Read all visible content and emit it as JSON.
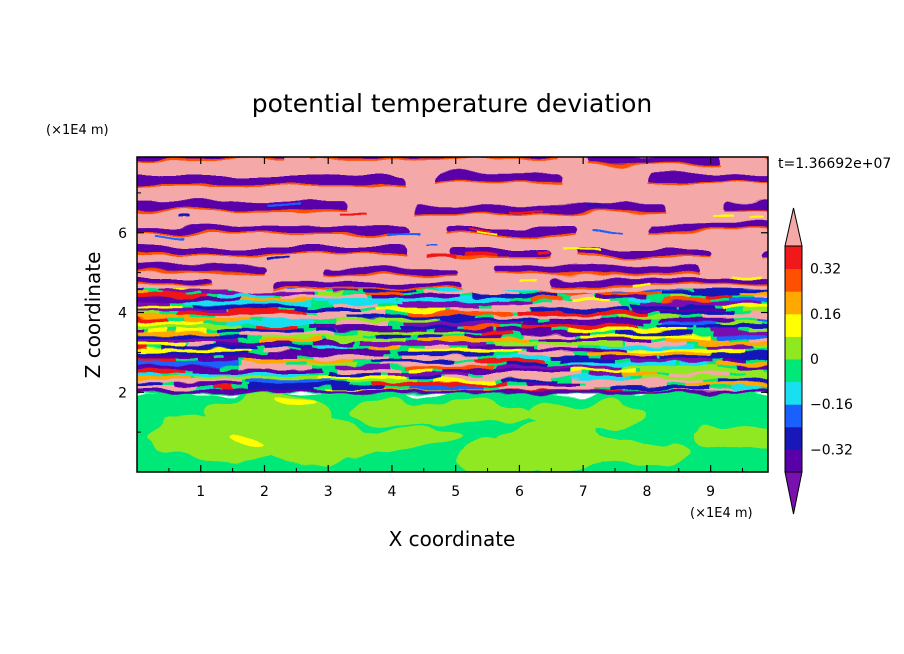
{
  "chart_data": {
    "type": "heatmap",
    "title": "potential temperature deviation",
    "time_label": "t=1.36692e+07",
    "xlabel": "X coordinate",
    "ylabel": "Z coordinate",
    "x_unit": "(×1E4 m)",
    "y_unit": "(×1E4 m)",
    "xlim": [
      0,
      9.9
    ],
    "ylim": [
      0,
      7.9
    ],
    "x_ticks": [
      1,
      2,
      3,
      4,
      5,
      6,
      7,
      8,
      9
    ],
    "y_ticks": [
      2,
      4,
      6
    ],
    "colorbar": {
      "levels": [
        -0.4,
        -0.32,
        -0.24,
        -0.16,
        -0.08,
        0,
        0.08,
        0.16,
        0.24,
        0.32,
        0.4
      ],
      "tick_labels": [
        "0.32",
        "0.16",
        "0",
        "−0.16",
        "−0.32"
      ],
      "tick_values": [
        0.32,
        0.16,
        0,
        -0.16,
        -0.32
      ],
      "colors": [
        "#7a10b0",
        "#5a00a8",
        "#1818b8",
        "#1a60ff",
        "#18e0f0",
        "#00e878",
        "#90e820",
        "#ffff00",
        "#ffa800",
        "#ff5000",
        "#f01818",
        "#f4a8a8"
      ],
      "extend": "both"
    },
    "regions": [
      {
        "z_range": [
          0,
          1.95
        ],
        "description": "lower layer, values near 0 to +0.08 (green / yellow-green)"
      },
      {
        "z_range": [
          1.95,
          4.6
        ],
        "description": "mixed layer with full range of values"
      },
      {
        "z_range": [
          4.6,
          7.9
        ],
        "description": "upper layer of alternating strongly positive (pink) and strongly negative (purple) horizontal bands"
      }
    ]
  }
}
